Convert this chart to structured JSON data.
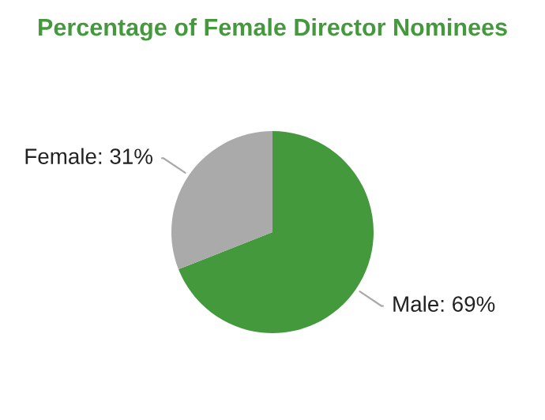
{
  "chart_data": {
    "type": "pie",
    "title": "Percentage of Female Director Nominees",
    "categories": [
      "Male: 69%",
      "Female: 31%"
    ],
    "values": [
      69,
      31
    ],
    "colors": [
      "#43993c",
      "#aaaaaa"
    ],
    "legend": false
  }
}
